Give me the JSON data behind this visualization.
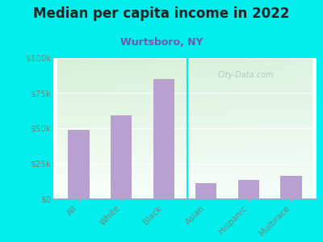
{
  "title": "Median per capita income in 2022",
  "subtitle": "Wurtsboro, NY",
  "categories": [
    "All",
    "White",
    "Black",
    "Asian",
    "Hispanic",
    "Multirace"
  ],
  "values": [
    49000,
    59000,
    85000,
    11000,
    13000,
    16000
  ],
  "bar_color": "#b8a0d0",
  "background_outer": "#00eeee",
  "background_inner_left": "#d6efd0",
  "background_inner_right": "#eaf5f5",
  "background_inner_bottom": "#f8ffff",
  "title_color": "#222222",
  "subtitle_color": "#7755aa",
  "tick_label_color": "#778877",
  "watermark_text": "City-Data.com",
  "watermark_color": "#b0c0c0",
  "ylim": [
    0,
    100000
  ],
  "yticks": [
    0,
    25000,
    50000,
    75000,
    100000
  ],
  "ytick_labels": [
    "$0",
    "$25k",
    "$50k",
    "$75k",
    "$100k"
  ],
  "title_fontsize": 12,
  "subtitle_fontsize": 9
}
